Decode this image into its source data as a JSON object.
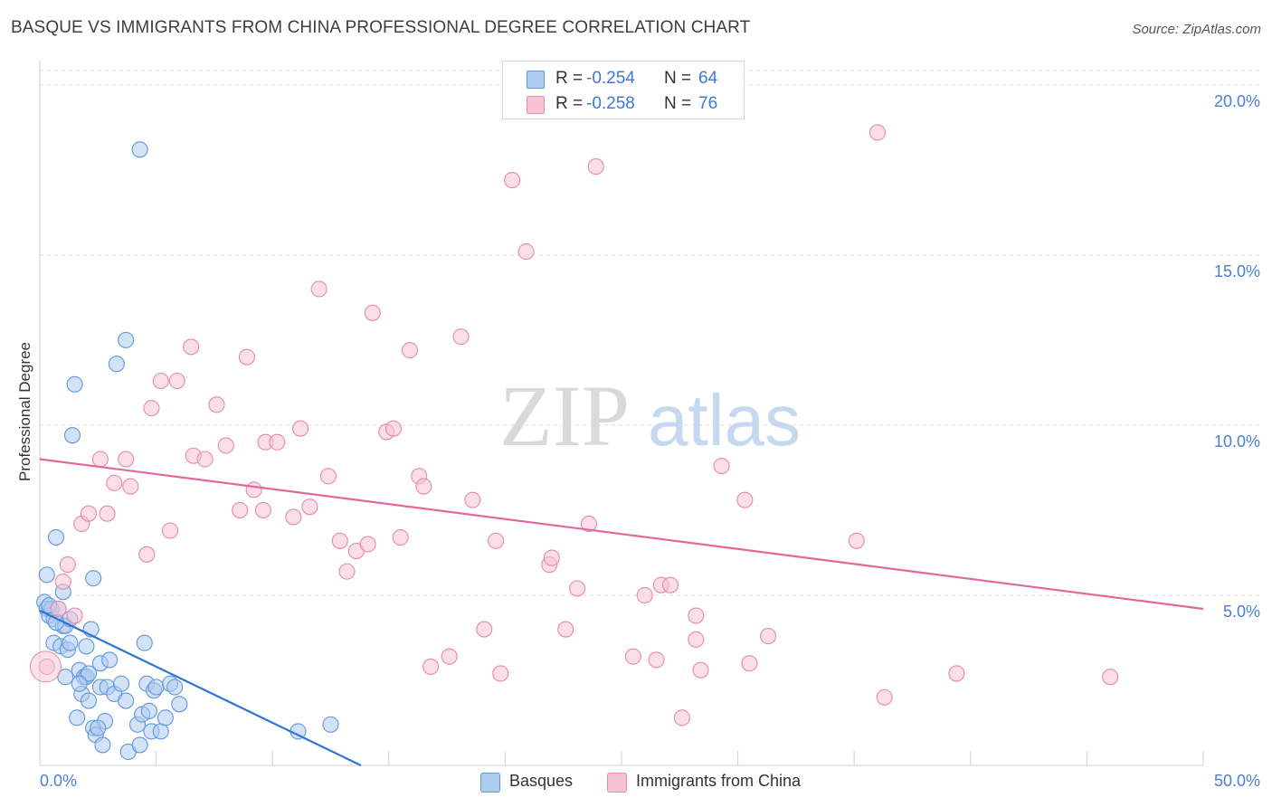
{
  "title": "BASQUE VS IMMIGRANTS FROM CHINA PROFESSIONAL DEGREE CORRELATION CHART",
  "source": "Source: ZipAtlas.com",
  "watermark": {
    "zip": "ZIP",
    "atlas": "atlas"
  },
  "legend_box": {
    "rows": [
      {
        "r_label": "R = ",
        "r_value": "-0.254",
        "n_label": "N = ",
        "n_value": "64"
      },
      {
        "r_label": "R = ",
        "r_value": "-0.258",
        "n_label": "N = ",
        "n_value": "76"
      }
    ]
  },
  "bottom_legend": {
    "series1": "Basques",
    "series2": "Immigrants from China"
  },
  "colors": {
    "blue_fill": "#aecbf0",
    "blue_stroke": "#5e97dc",
    "blue_line": "#2f76d2",
    "pink_fill": "#f7c3d4",
    "pink_stroke": "#e68aa8",
    "pink_line": "#e4679a",
    "axis_text": "#4a7fd4",
    "grid": "#dddddd",
    "value_text": "#3c78d8"
  },
  "chart_data": {
    "type": "scatter",
    "title": "BASQUE VS IMMIGRANTS FROM CHINA PROFESSIONAL DEGREE CORRELATION CHART",
    "xlabel": "",
    "ylabel": "Professional Degree",
    "xlim": [
      0,
      50
    ],
    "ylim": [
      0,
      20.5
    ],
    "x_tick_labels": [
      "0.0%",
      "50.0%"
    ],
    "y_ticks": [
      5,
      10,
      15,
      20
    ],
    "y_tick_labels": [
      "5.0%",
      "10.0%",
      "15.0%",
      "20.0%"
    ],
    "grid": "horizontal dashed",
    "legend": "top-center",
    "series": [
      {
        "name": "Basques",
        "color": "#5e97dc",
        "R": -0.254,
        "N": 64,
        "trend": {
          "x0": 0.0,
          "y0": 4.55,
          "x1": 13.8,
          "y1": 0.0
        },
        "points": [
          [
            0.2,
            4.8
          ],
          [
            0.3,
            4.6
          ],
          [
            0.3,
            5.6
          ],
          [
            0.4,
            4.4
          ],
          [
            0.5,
            4.6
          ],
          [
            0.6,
            4.3
          ],
          [
            0.6,
            3.6
          ],
          [
            0.7,
            6.7
          ],
          [
            0.8,
            4.6
          ],
          [
            0.9,
            3.5
          ],
          [
            1.0,
            5.1
          ],
          [
            1.0,
            4.1
          ],
          [
            1.1,
            2.6
          ],
          [
            1.1,
            4.1
          ],
          [
            1.2,
            3.4
          ],
          [
            1.3,
            4.3
          ],
          [
            1.4,
            9.7
          ],
          [
            1.5,
            11.2
          ],
          [
            1.6,
            1.4
          ],
          [
            1.7,
            2.8
          ],
          [
            1.8,
            2.1
          ],
          [
            1.9,
            2.6
          ],
          [
            2.0,
            2.6
          ],
          [
            2.0,
            3.5
          ],
          [
            2.1,
            1.9
          ],
          [
            2.2,
            4.0
          ],
          [
            2.3,
            1.1
          ],
          [
            2.3,
            5.5
          ],
          [
            2.4,
            0.9
          ],
          [
            2.6,
            2.3
          ],
          [
            2.6,
            3.0
          ],
          [
            2.7,
            0.6
          ],
          [
            2.8,
            1.3
          ],
          [
            2.9,
            2.3
          ],
          [
            3.0,
            3.1
          ],
          [
            3.2,
            2.1
          ],
          [
            3.3,
            11.8
          ],
          [
            3.5,
            2.4
          ],
          [
            3.7,
            1.9
          ],
          [
            3.8,
            0.4
          ],
          [
            4.2,
            1.2
          ],
          [
            4.3,
            0.6
          ],
          [
            4.3,
            18.1
          ],
          [
            4.4,
            1.5
          ],
          [
            4.5,
            3.6
          ],
          [
            4.6,
            2.4
          ],
          [
            4.7,
            1.6
          ],
          [
            4.8,
            1.0
          ],
          [
            4.9,
            2.2
          ],
          [
            5.0,
            2.3
          ],
          [
            5.2,
            1.0
          ],
          [
            5.4,
            1.4
          ],
          [
            5.6,
            2.4
          ],
          [
            5.8,
            2.3
          ],
          [
            6.0,
            1.8
          ],
          [
            2.1,
            2.7
          ],
          [
            3.7,
            12.5
          ],
          [
            1.7,
            2.4
          ],
          [
            1.3,
            3.6
          ],
          [
            2.5,
            1.1
          ],
          [
            11.1,
            1.0
          ],
          [
            12.5,
            1.2
          ],
          [
            0.4,
            4.7
          ],
          [
            0.7,
            4.2
          ]
        ]
      },
      {
        "name": "Immigrants from China",
        "color": "#e68aa8",
        "R": -0.258,
        "N": 76,
        "trend": {
          "x0": 0.0,
          "y0": 9.0,
          "x1": 50.0,
          "y1": 4.6
        },
        "points": [
          [
            0.3,
            2.9
          ],
          [
            0.8,
            4.6
          ],
          [
            1.0,
            5.4
          ],
          [
            1.2,
            5.9
          ],
          [
            1.5,
            4.4
          ],
          [
            1.8,
            7.1
          ],
          [
            2.1,
            7.4
          ],
          [
            2.6,
            9.0
          ],
          [
            2.9,
            7.4
          ],
          [
            3.2,
            8.3
          ],
          [
            3.7,
            9.0
          ],
          [
            3.9,
            8.2
          ],
          [
            4.6,
            6.2
          ],
          [
            4.8,
            10.5
          ],
          [
            5.2,
            11.3
          ],
          [
            5.6,
            6.9
          ],
          [
            5.9,
            11.3
          ],
          [
            6.5,
            12.3
          ],
          [
            6.6,
            9.1
          ],
          [
            7.1,
            9.0
          ],
          [
            7.6,
            10.6
          ],
          [
            8.0,
            9.4
          ],
          [
            8.6,
            7.5
          ],
          [
            8.9,
            12.0
          ],
          [
            9.2,
            8.1
          ],
          [
            9.6,
            7.5
          ],
          [
            9.7,
            9.5
          ],
          [
            10.2,
            9.5
          ],
          [
            10.9,
            7.3
          ],
          [
            11.2,
            9.9
          ],
          [
            11.6,
            7.6
          ],
          [
            12.0,
            14.0
          ],
          [
            12.4,
            8.5
          ],
          [
            12.9,
            6.6
          ],
          [
            13.2,
            5.7
          ],
          [
            13.6,
            6.3
          ],
          [
            14.1,
            6.5
          ],
          [
            14.3,
            13.3
          ],
          [
            14.9,
            9.8
          ],
          [
            15.2,
            9.9
          ],
          [
            15.5,
            6.7
          ],
          [
            15.9,
            12.2
          ],
          [
            16.3,
            8.5
          ],
          [
            16.5,
            8.2
          ],
          [
            16.8,
            2.9
          ],
          [
            17.6,
            3.2
          ],
          [
            18.1,
            12.6
          ],
          [
            18.6,
            7.8
          ],
          [
            19.1,
            4.0
          ],
          [
            19.6,
            6.6
          ],
          [
            19.8,
            2.7
          ],
          [
            20.3,
            17.2
          ],
          [
            20.9,
            15.1
          ],
          [
            21.9,
            5.9
          ],
          [
            22.0,
            6.1
          ],
          [
            22.6,
            4.0
          ],
          [
            23.1,
            5.2
          ],
          [
            23.6,
            7.1
          ],
          [
            23.9,
            17.6
          ],
          [
            25.5,
            3.2
          ],
          [
            26.0,
            5.0
          ],
          [
            26.5,
            3.1
          ],
          [
            26.7,
            5.3
          ],
          [
            27.1,
            5.3
          ],
          [
            27.6,
            1.4
          ],
          [
            28.2,
            3.7
          ],
          [
            28.2,
            4.4
          ],
          [
            28.4,
            2.8
          ],
          [
            29.3,
            8.8
          ],
          [
            30.3,
            7.8
          ],
          [
            30.5,
            3.0
          ],
          [
            31.3,
            3.8
          ],
          [
            35.1,
            6.6
          ],
          [
            36.0,
            18.6
          ],
          [
            36.3,
            2.0
          ],
          [
            39.4,
            2.7
          ],
          [
            46.0,
            2.6
          ]
        ]
      }
    ]
  }
}
